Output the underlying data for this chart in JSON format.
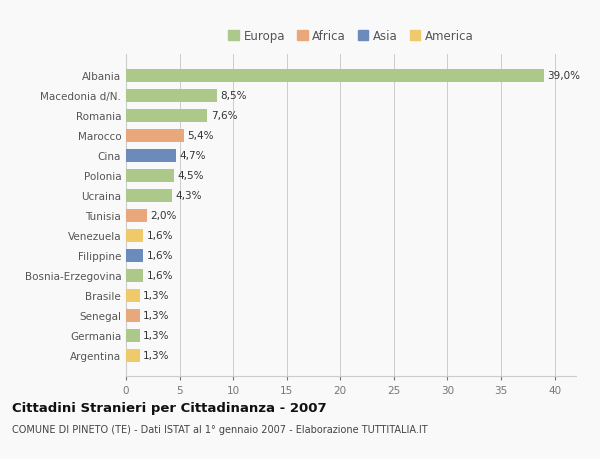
{
  "categories": [
    "Albania",
    "Macedonia d/N.",
    "Romania",
    "Marocco",
    "Cina",
    "Polonia",
    "Ucraina",
    "Tunisia",
    "Venezuela",
    "Filippine",
    "Bosnia-Erzegovina",
    "Brasile",
    "Senegal",
    "Germania",
    "Argentina"
  ],
  "values": [
    39.0,
    8.5,
    7.6,
    5.4,
    4.7,
    4.5,
    4.3,
    2.0,
    1.6,
    1.6,
    1.6,
    1.3,
    1.3,
    1.3,
    1.3
  ],
  "labels": [
    "39,0%",
    "8,5%",
    "7,6%",
    "5,4%",
    "4,7%",
    "4,5%",
    "4,3%",
    "2,0%",
    "1,6%",
    "1,6%",
    "1,6%",
    "1,3%",
    "1,3%",
    "1,3%",
    "1,3%"
  ],
  "continents": [
    "Europa",
    "Europa",
    "Europa",
    "Africa",
    "Asia",
    "Europa",
    "Europa",
    "Africa",
    "America",
    "Asia",
    "Europa",
    "America",
    "Africa",
    "Europa",
    "America"
  ],
  "continent_colors": {
    "Europa": "#adc98a",
    "Africa": "#e8a87c",
    "Asia": "#6b8cba",
    "America": "#f0c96b"
  },
  "legend_order": [
    "Europa",
    "Africa",
    "Asia",
    "America"
  ],
  "xlim": [
    0,
    42
  ],
  "xticks": [
    0,
    5,
    10,
    15,
    20,
    25,
    30,
    35,
    40
  ],
  "title": "Cittadini Stranieri per Cittadinanza - 2007",
  "subtitle": "COMUNE DI PINETO (TE) - Dati ISTAT al 1° gennaio 2007 - Elaborazione TUTTITALIA.IT",
  "bg_color": "#f9f9f9",
  "grid_color": "#cccccc",
  "bar_height": 0.65,
  "label_fontsize": 7.5,
  "tick_fontsize": 7.5,
  "title_fontsize": 9.5,
  "subtitle_fontsize": 7.0,
  "legend_fontsize": 8.5
}
